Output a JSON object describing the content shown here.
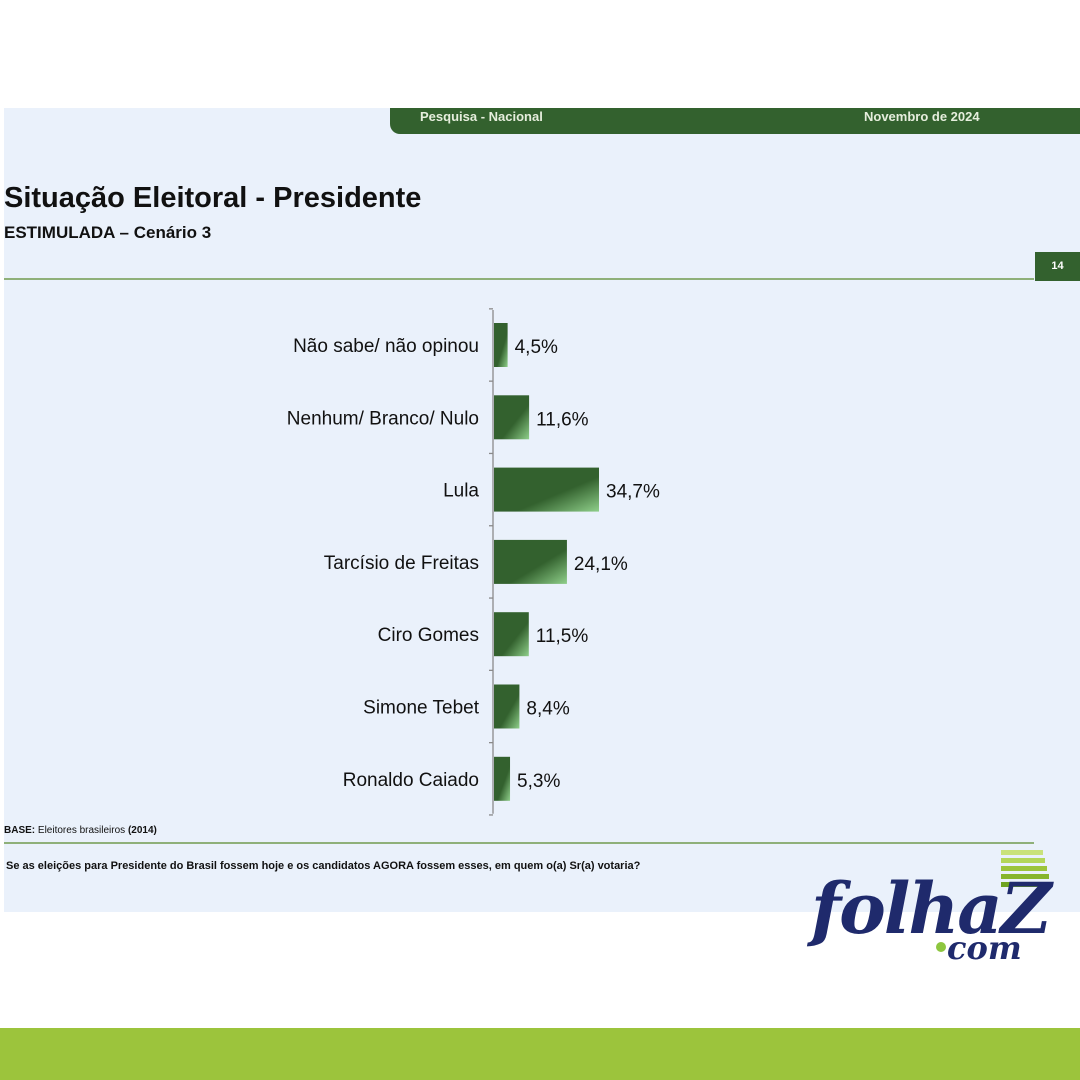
{
  "header": {
    "survey_label": "Pesquisa - Nacional",
    "date_label": "Novembro de 2024",
    "title": "Situação Eleitoral - Presidente",
    "subtitle": "ESTIMULADA – Cenário 3",
    "page_number": "14"
  },
  "chart_data": {
    "type": "bar",
    "orientation": "horizontal",
    "categories": [
      "Não sabe/ não opinou",
      "Nenhum/ Branco/ Nulo",
      "Lula",
      "Tarcísio de Freitas",
      "Ciro Gomes",
      "Simone Tebet",
      "Ronaldo Caiado"
    ],
    "values": [
      4.5,
      11.6,
      34.7,
      24.1,
      11.5,
      8.4,
      5.3
    ],
    "value_labels": [
      "4,5%",
      "11,6%",
      "34,7%",
      "24,1%",
      "11,5%",
      "8,4%",
      "5,3%"
    ],
    "unit": "%",
    "bar_color": "#33612e",
    "grid": false
  },
  "footer": {
    "base_label": "BASE:",
    "base_text": "Eleitores brasileiros",
    "base_count": "(2014)",
    "question": "Se as eleições para Presidente do Brasil fossem hoje e os candidatos AGORA fossem esses, em quem o(a) Sr(a) votaria?"
  },
  "logo": {
    "main": "folhaZ",
    "dot_com": "com"
  },
  "colors": {
    "accent_green": "#33612e",
    "band_green": "#9cc43c",
    "logo_navy": "#1f2a6c"
  }
}
